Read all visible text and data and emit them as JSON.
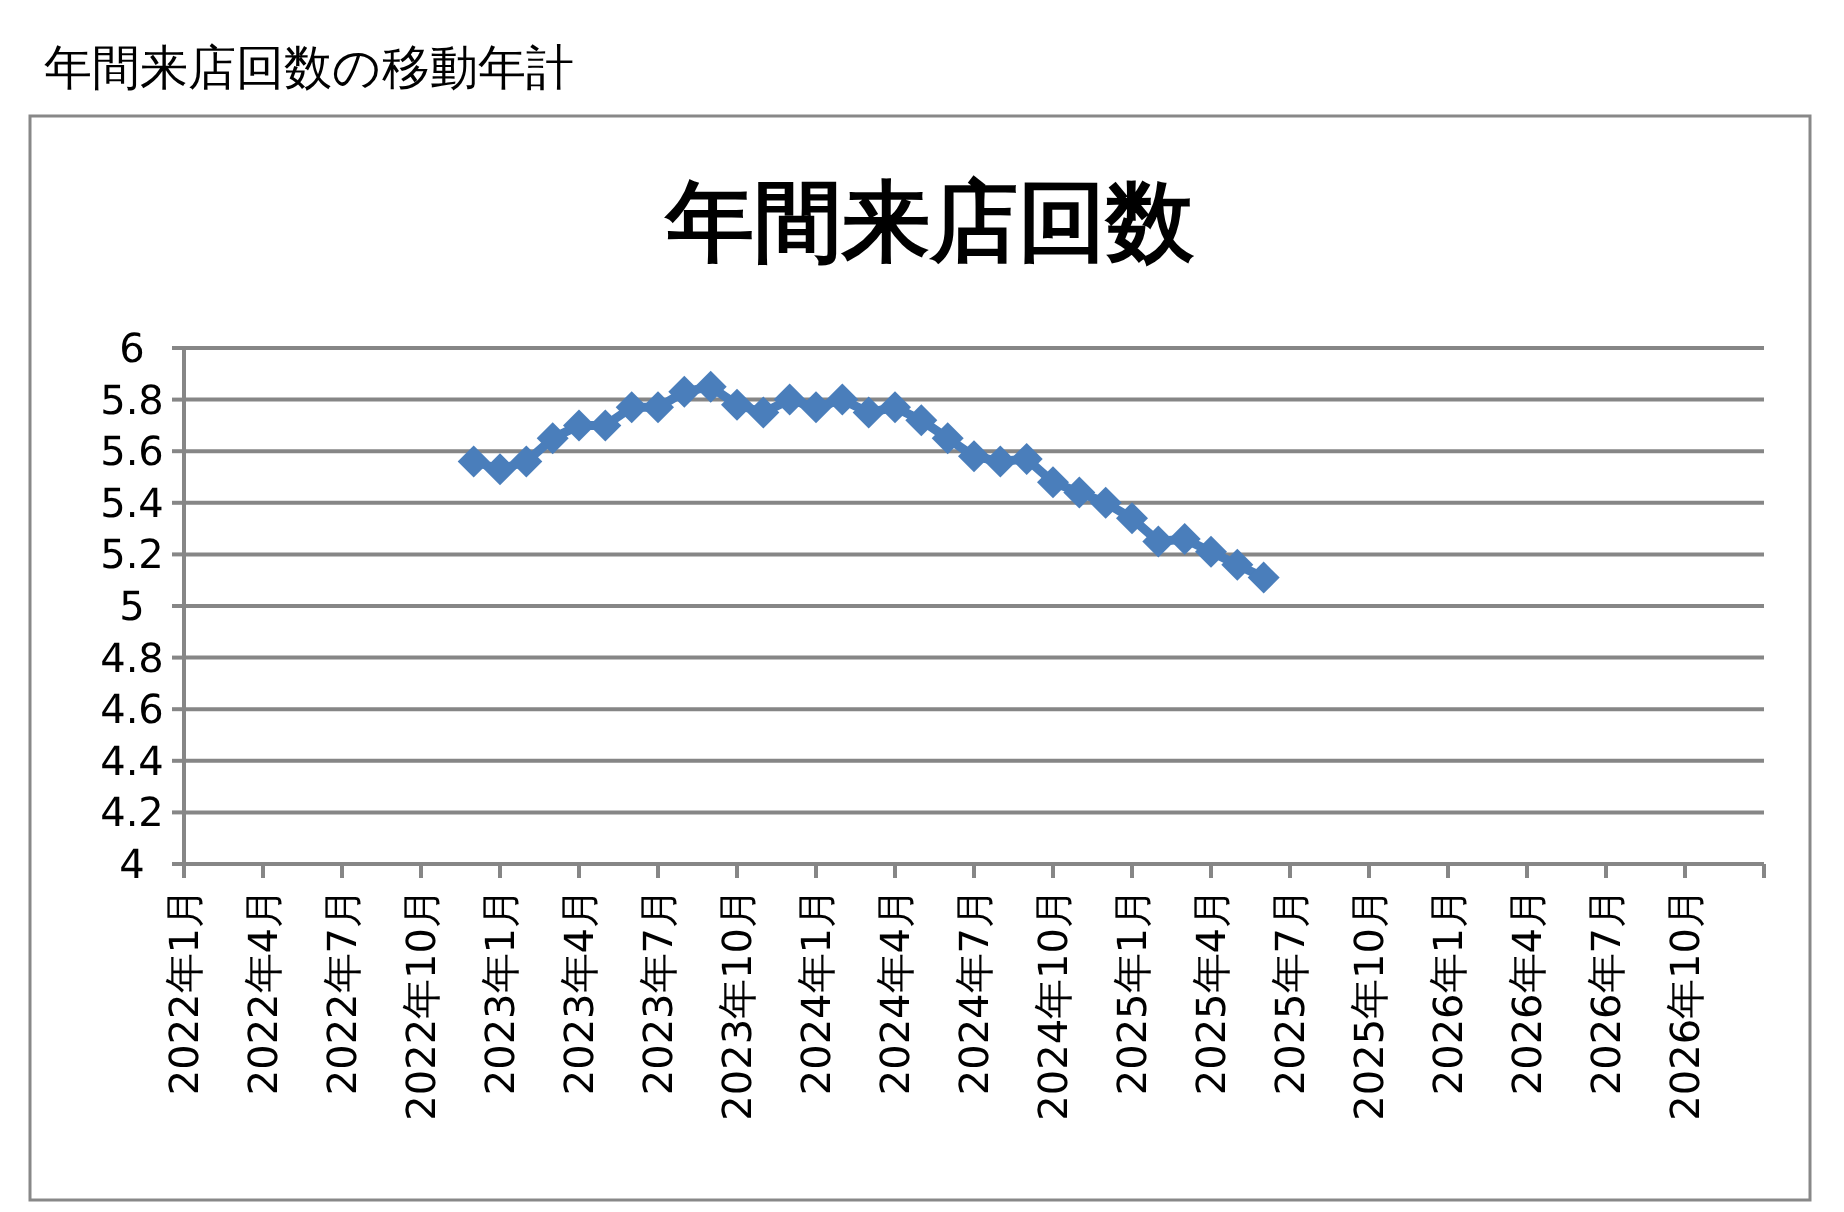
{
  "chart_data": {
    "type": "line",
    "title": "年間来店回数",
    "annotations": [
      "年間来店回数の移動年計"
    ],
    "x": [
      "2022-12",
      "2023-01",
      "2023-02",
      "2023-03",
      "2023-04",
      "2023-05",
      "2023-06",
      "2023-07",
      "2023-08",
      "2023-09",
      "2023-10",
      "2023-11",
      "2023-12",
      "2024-01",
      "2024-02",
      "2024-03",
      "2024-04",
      "2024-05",
      "2024-06",
      "2024-07",
      "2024-08",
      "2024-09",
      "2024-10",
      "2024-11",
      "2024-12",
      "2025-01",
      "2025-02",
      "2025-03",
      "2025-04",
      "2025-05",
      "2025-06"
    ],
    "series": [
      {
        "color": "#4a7ebb",
        "values": [
          5.56,
          5.53,
          5.56,
          5.65,
          5.7,
          5.7,
          5.77,
          5.77,
          5.83,
          5.85,
          5.78,
          5.75,
          5.8,
          5.77,
          5.8,
          5.75,
          5.77,
          5.72,
          5.65,
          5.58,
          5.56,
          5.57,
          5.48,
          5.44,
          5.4,
          5.34,
          5.25,
          5.26,
          5.21,
          5.16,
          5.11
        ]
      }
    ],
    "ylim": [
      4,
      6
    ],
    "yticks": [
      4,
      4.2,
      4.4,
      4.6,
      4.8,
      5,
      5.2,
      5.4,
      5.6,
      5.8,
      6
    ],
    "xlim": [
      "2022-01",
      "2027-01"
    ],
    "xticks": [
      {
        "value": "2022-01",
        "label": "2022年1月"
      },
      {
        "value": "2022-04",
        "label": "2022年4月"
      },
      {
        "value": "2022-07",
        "label": "2022年7月"
      },
      {
        "value": "2022-10",
        "label": "2022年10月"
      },
      {
        "value": "2023-01",
        "label": "2023年1月"
      },
      {
        "value": "2023-04",
        "label": "2023年4月"
      },
      {
        "value": "2023-07",
        "label": "2023年7月"
      },
      {
        "value": "2023-10",
        "label": "2023年10月"
      },
      {
        "value": "2024-01",
        "label": "2024年1月"
      },
      {
        "value": "2024-04",
        "label": "2024年4月"
      },
      {
        "value": "2024-07",
        "label": "2024年7月"
      },
      {
        "value": "2024-10",
        "label": "2024年10月"
      },
      {
        "value": "2025-01",
        "label": "2025年1月"
      },
      {
        "value": "2025-04",
        "label": "2025年4月"
      },
      {
        "value": "2025-07",
        "label": "2025年7月"
      },
      {
        "value": "2025-10",
        "label": "2025年10月"
      },
      {
        "value": "2026-01",
        "label": "2026年1月"
      },
      {
        "value": "2026-04",
        "label": "2026年4月"
      },
      {
        "value": "2026-07",
        "label": "2026年7月"
      },
      {
        "value": "2026-10",
        "label": "2026年10月"
      }
    ],
    "grid": "y",
    "legend": false,
    "marker": "diamond",
    "line_style": "solid"
  }
}
